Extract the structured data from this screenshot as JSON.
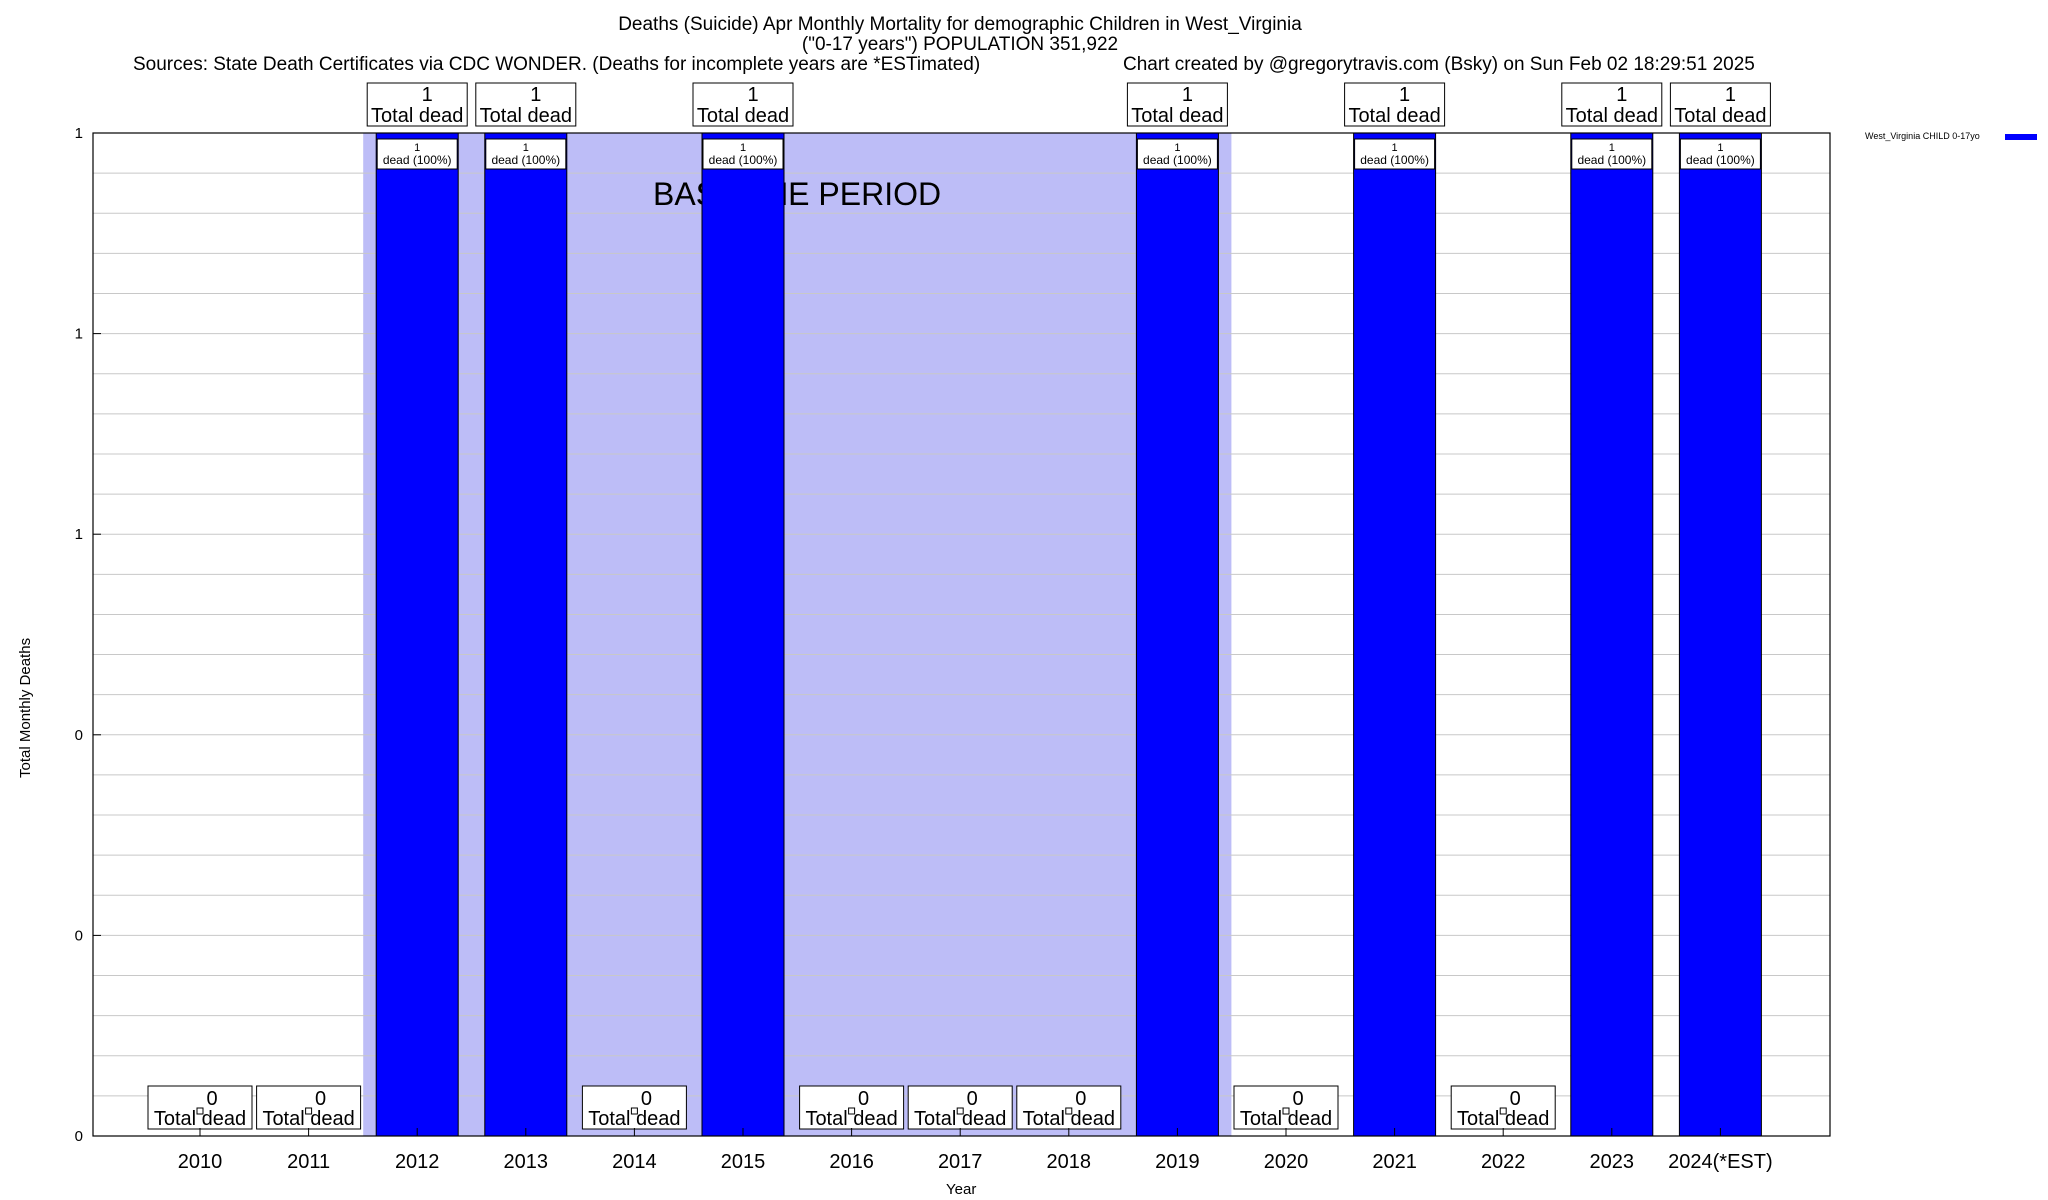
{
  "chart_data": {
    "type": "bar",
    "title_line1": "Deaths (Suicide) Apr Monthly Mortality for demographic Children in West_Virginia",
    "title_line2": "(\"0-17 years\") POPULATION 351,922",
    "sources": "Sources: State Death Certificates via CDC WONDER. (Deaths for incomplete years are *ESTimated)",
    "credit": "Chart created by @gregorytravis.com (Bsky) on Sun Feb 02 18:29:51 2025",
    "xlabel": "Year",
    "ylabel": "Total Monthly Deaths",
    "categories": [
      "2010",
      "2011",
      "2012",
      "2013",
      "2014",
      "2015",
      "2016",
      "2017",
      "2018",
      "2019",
      "2020",
      "2021",
      "2022",
      "2023",
      "2024(*EST)"
    ],
    "series": [
      {
        "name": "West_Virginia CHILD 0-17yo",
        "color": "#0000ff",
        "values": [
          0,
          0,
          1,
          1,
          0,
          1,
          0,
          0,
          0,
          1,
          0,
          1,
          0,
          1,
          1
        ]
      }
    ],
    "total_label_numbers": [
      "0",
      "0",
      "1",
      "1",
      "0",
      "1",
      "0",
      "0",
      "0",
      "1",
      "0",
      "1",
      "0",
      "1",
      "1"
    ],
    "total_label_text": "Total dead",
    "bar_label_top": "1",
    "bar_label_bottom": "dead (100%)",
    "ylim": [
      0,
      1
    ],
    "yticks": [
      {
        "value": 0,
        "label": "0"
      },
      {
        "value": 0.2,
        "label": "0"
      },
      {
        "value": 0.4,
        "label": "0"
      },
      {
        "value": 0.6,
        "label": "1"
      },
      {
        "value": 0.8,
        "label": "1"
      },
      {
        "value": 1.0,
        "label": "1"
      }
    ],
    "baseline_label": "BASELINE PERIOD",
    "baseline_start": "2012",
    "baseline_end": "2019",
    "baseline_color": "#bdbdf7",
    "grid": true,
    "legend_position": "top-right"
  }
}
